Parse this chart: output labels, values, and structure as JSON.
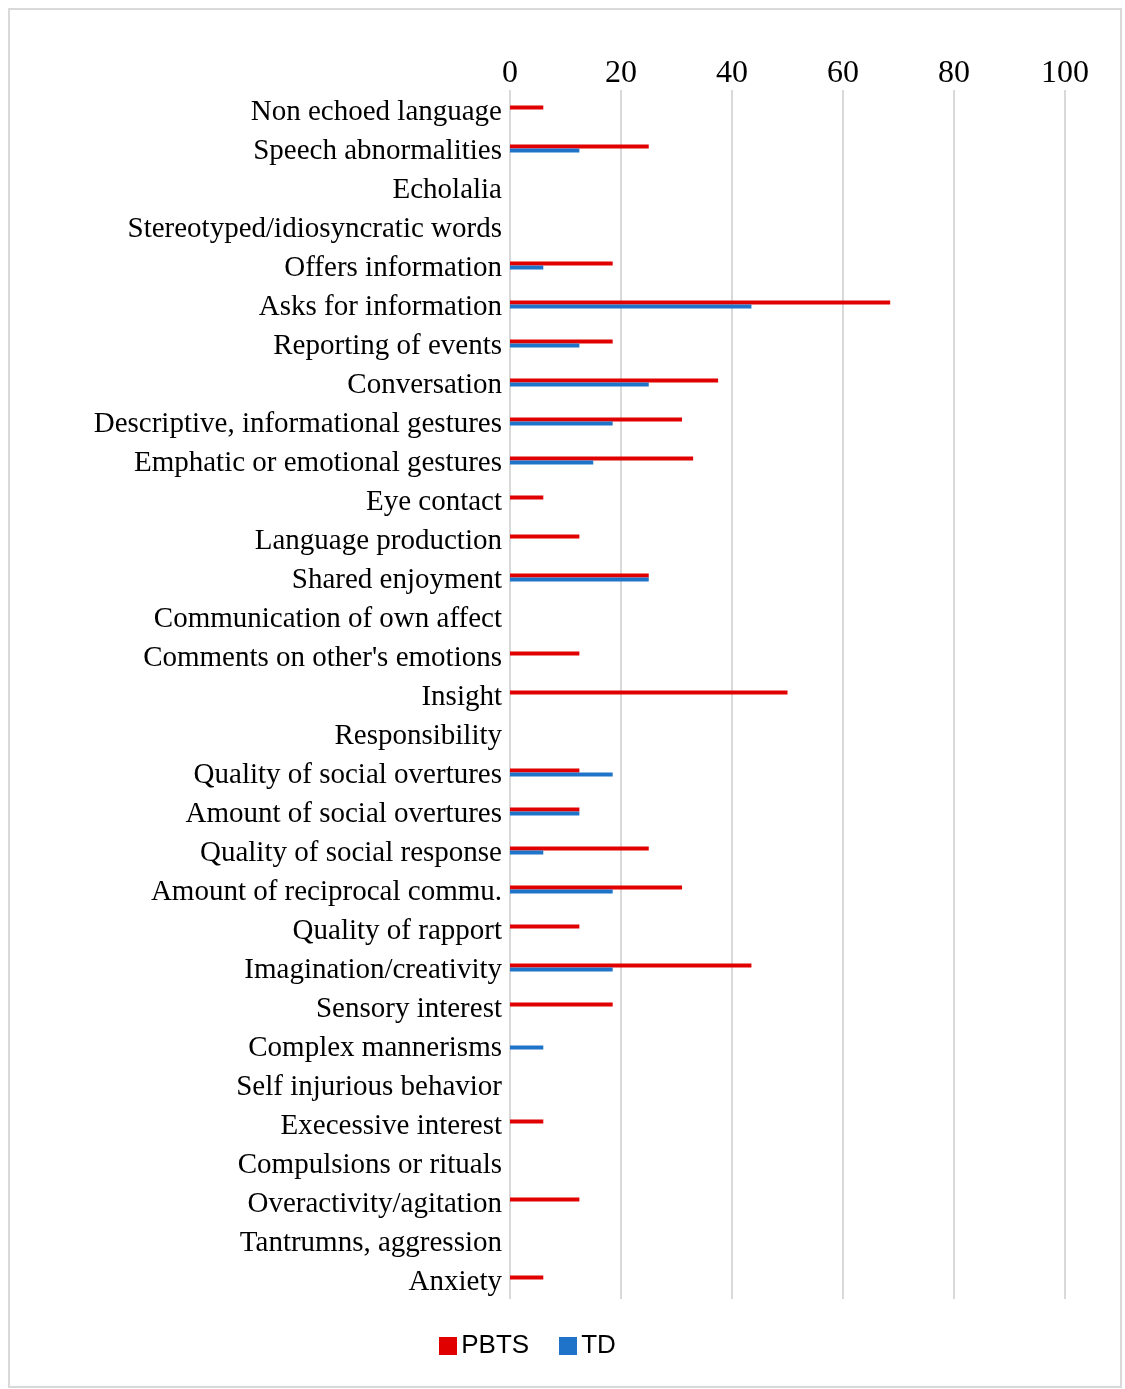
{
  "chart_data": {
    "type": "bar",
    "orientation": "horizontal",
    "categories": [
      "Non echoed language",
      "Speech abnormalities",
      "Echolalia",
      "Stereotyped/idiosyncratic words",
      "Offers information",
      "Asks for information",
      "Reporting of events",
      "Conversation",
      "Descriptive, informational gestures",
      "Emphatic or emotional gestures",
      "Eye contact",
      "Language production",
      "Shared enjoyment",
      "Communication of own affect",
      "Comments on other's emotions",
      "Insight",
      "Responsibility",
      "Quality of social overtures",
      "Amount of social overtures",
      "Quality of social response",
      "Amount of reciprocal commu.",
      "Quality of rapport",
      "Imagination/creativity",
      "Sensory interest",
      "Complex mannerisms",
      "Self injurious behavior",
      "Execessive interest",
      "Compulsions or rituals",
      "Overactivity/agitation",
      "Tantrumns, aggression",
      "Anxiety"
    ],
    "series": [
      {
        "name": "PBTS",
        "color": "#e00000",
        "values": [
          6,
          25,
          0,
          0,
          18.5,
          68.5,
          18.5,
          37.5,
          31,
          33,
          6,
          12.5,
          25,
          0,
          12.5,
          50,
          0,
          12.5,
          12.5,
          25,
          31,
          12.5,
          43.5,
          18.5,
          0,
          0,
          6,
          0,
          12.5,
          0,
          6
        ]
      },
      {
        "name": "TD",
        "color": "#1f74c9",
        "values": [
          0,
          12.5,
          0,
          0,
          6,
          43.5,
          12.5,
          25,
          18.5,
          15,
          0,
          0,
          25,
          0,
          0,
          0,
          0,
          18.5,
          12.5,
          6,
          18.5,
          0,
          18.5,
          0,
          6,
          0,
          0,
          0,
          0,
          0,
          0
        ]
      }
    ],
    "xlim": [
      0,
      100
    ],
    "xticks": [
      0,
      20,
      40,
      60,
      80,
      100
    ],
    "grid": "x",
    "legend": "bottom"
  }
}
